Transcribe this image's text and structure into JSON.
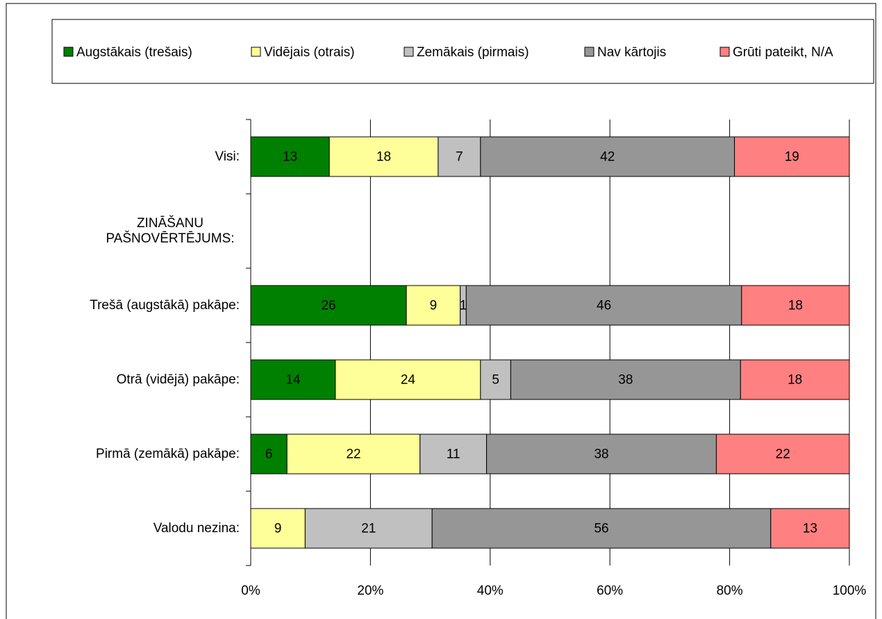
{
  "chart_data": {
    "type": "stacked_bar_100",
    "categories": [
      "Visi:",
      "ZINĀŠANU PAŠNOVĒRTĒJUMS:",
      "Trešā (augstākā) pakāpe:",
      "Otrā (vidējā) pakāpe:",
      "Pirmā (zemākā) pakāpe:",
      "Valodu nezina:"
    ],
    "series": [
      {
        "name": "Augstākais (trešais)",
        "color": "#008000",
        "values": [
          13,
          null,
          26,
          14,
          6,
          null
        ]
      },
      {
        "name": "Vidējais (otrais)",
        "color": "#ffff99",
        "values": [
          18,
          null,
          9,
          24,
          22,
          9
        ]
      },
      {
        "name": "Zemākais (pirmais)",
        "color": "#c0c0c0",
        "values": [
          7,
          null,
          1,
          5,
          11,
          21
        ]
      },
      {
        "name": "Nav kārtojis",
        "color": "#969696",
        "values": [
          42,
          null,
          46,
          38,
          38,
          56
        ]
      },
      {
        "name": "Grūti pateikt, N/A",
        "color": "#ff8080",
        "values": [
          19,
          null,
          18,
          18,
          22,
          13
        ]
      }
    ],
    "xlim": [
      0,
      100
    ],
    "xticks": [
      {
        "value": 0,
        "label": "0%"
      },
      {
        "value": 20,
        "label": "20%"
      },
      {
        "value": 40,
        "label": "40%"
      },
      {
        "value": 60,
        "label": "60%"
      },
      {
        "value": 80,
        "label": "80%"
      },
      {
        "value": 100,
        "label": "100%"
      }
    ],
    "grid": true,
    "legend": "top"
  }
}
